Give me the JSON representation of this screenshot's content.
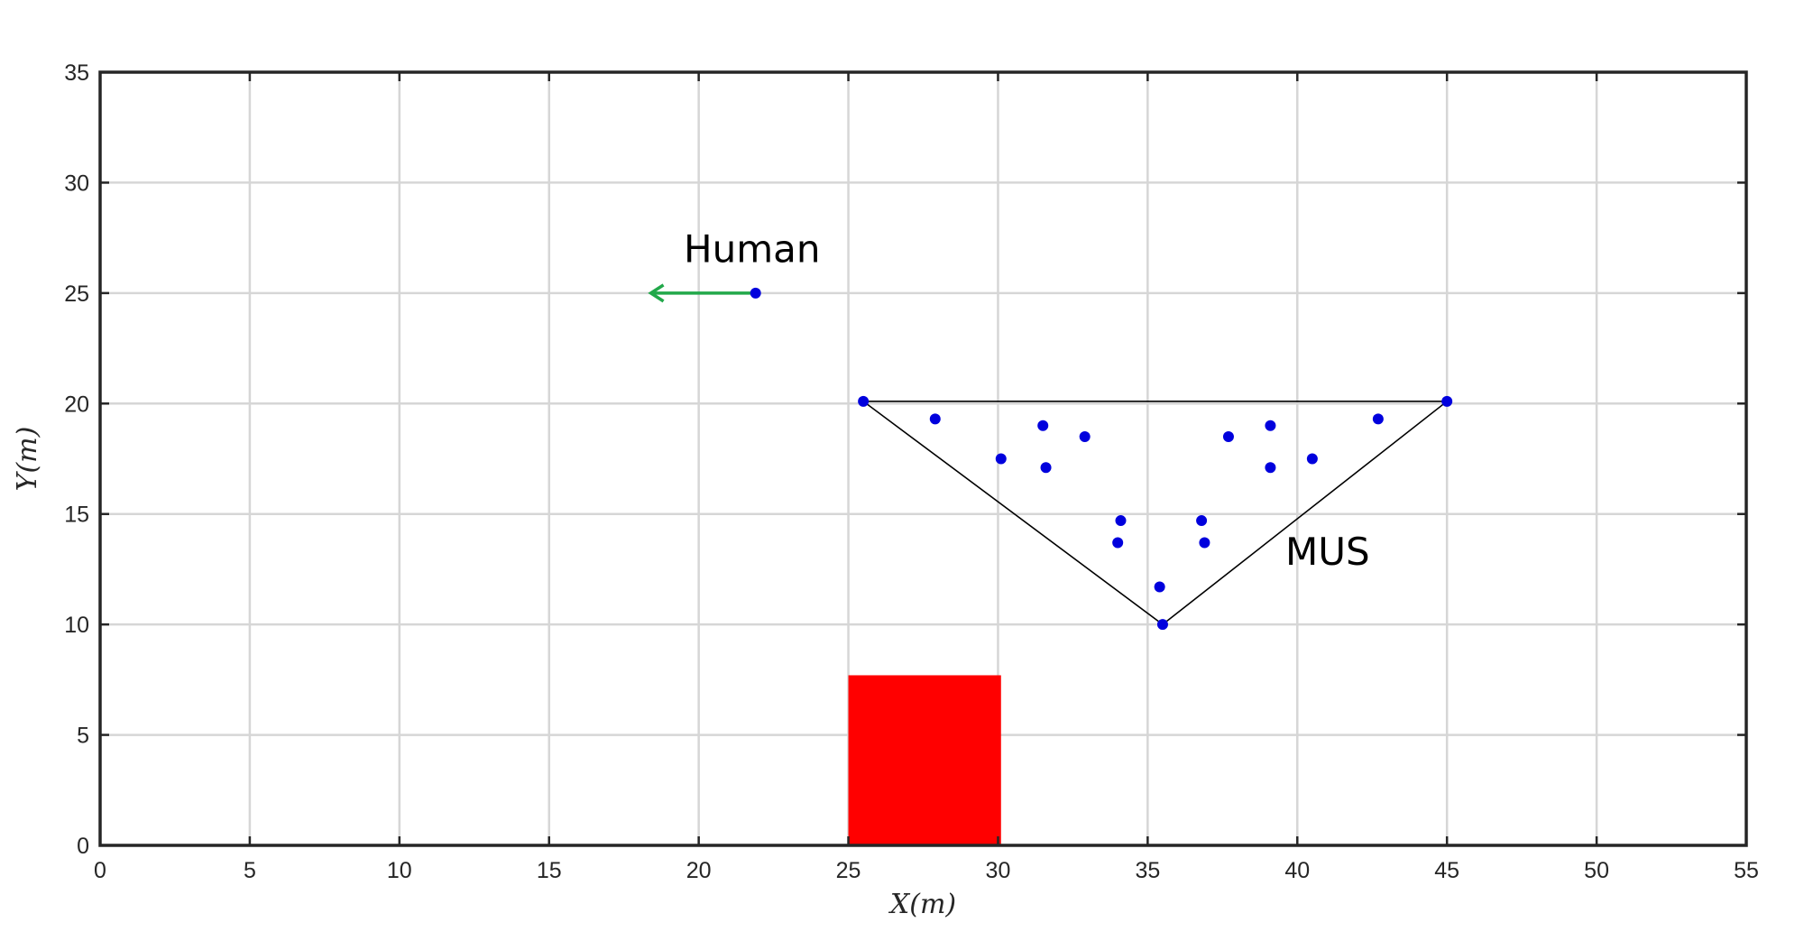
{
  "chart_data": {
    "type": "scatter",
    "title": "",
    "xlabel": "X(m)",
    "ylabel": "Y(m)",
    "xlim": [
      0,
      55
    ],
    "ylim": [
      0,
      35
    ],
    "x_ticks": [
      0,
      5,
      10,
      15,
      20,
      25,
      30,
      35,
      40,
      45,
      50,
      55
    ],
    "y_ticks": [
      0,
      5,
      10,
      15,
      20,
      25,
      30,
      35
    ],
    "x_tick_labels": [
      "0",
      "5",
      "10",
      "15",
      "20",
      "25",
      "30",
      "35",
      "40",
      "45",
      "50",
      "55"
    ],
    "y_tick_labels": [
      "0",
      "5",
      "10",
      "15",
      "20",
      "25",
      "30",
      "35"
    ],
    "grid": true,
    "point_color": "#0000dd",
    "arrow_color": "#22a84a",
    "obstacle_color": "#ff0000",
    "triangle_color": "#000000",
    "human": {
      "label": "Human",
      "position": [
        21.9,
        25.0
      ],
      "arrow_to": [
        18.4,
        25.0
      ]
    },
    "mus": {
      "label": "MUS",
      "vertices": [
        [
          25.5,
          20.1
        ],
        [
          45.0,
          20.1
        ],
        [
          35.5,
          10.0
        ]
      ],
      "points": [
        [
          27.9,
          19.3
        ],
        [
          31.5,
          19.0
        ],
        [
          32.9,
          18.5
        ],
        [
          30.1,
          17.5
        ],
        [
          31.6,
          17.1
        ],
        [
          34.1,
          14.7
        ],
        [
          34.0,
          13.7
        ],
        [
          35.4,
          11.7
        ],
        [
          36.8,
          14.7
        ],
        [
          36.9,
          13.7
        ],
        [
          37.7,
          18.5
        ],
        [
          39.1,
          19.0
        ],
        [
          39.1,
          17.1
        ],
        [
          40.5,
          17.5
        ],
        [
          42.7,
          19.3
        ]
      ]
    },
    "obstacle": {
      "x": [
        25.0,
        30.1
      ],
      "y": [
        0.0,
        7.7
      ]
    },
    "annotations": [
      {
        "text": "Human",
        "x": 19.5,
        "y": 26.4
      },
      {
        "text": "MUS",
        "x": 39.6,
        "y": 12.7
      }
    ]
  }
}
